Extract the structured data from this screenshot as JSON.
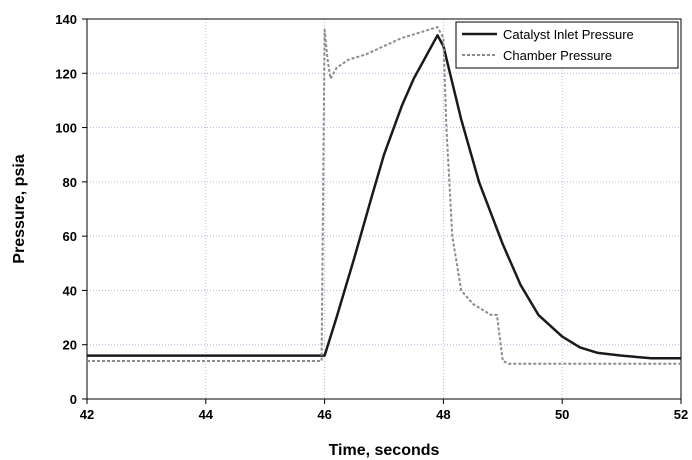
{
  "chart_data": {
    "type": "line",
    "title": "",
    "xlabel": "Time, seconds",
    "ylabel": "Pressure, psia",
    "xlim": [
      42,
      52
    ],
    "ylim": [
      0,
      140
    ],
    "xticks": [
      "42",
      "44",
      "46",
      "48",
      "50",
      "52"
    ],
    "yticks": [
      "0",
      "20",
      "40",
      "60",
      "80",
      "100",
      "120",
      "140"
    ],
    "grid": true,
    "legend_position": "top-right",
    "series": [
      {
        "name": "Catalyst Inlet Pressure",
        "color": "#1a1a1a",
        "style": "solid",
        "x": [
          42,
          43,
          44,
          45,
          45.9,
          46.0,
          46.2,
          46.5,
          46.8,
          47.0,
          47.3,
          47.5,
          47.7,
          47.9,
          48.0,
          48.3,
          48.6,
          49.0,
          49.3,
          49.6,
          50.0,
          50.3,
          50.6,
          51.0,
          51.5,
          52.0
        ],
        "y": [
          16,
          16,
          16,
          16,
          16,
          16,
          30,
          52,
          75,
          90,
          108,
          118,
          126,
          134,
          130,
          103,
          80,
          57,
          42,
          31,
          23,
          19,
          17,
          16,
          15,
          15
        ]
      },
      {
        "name": "Chamber Pressure",
        "color": "#8c8c8c",
        "style": "dashed",
        "x": [
          42,
          43,
          44,
          45,
          45.95,
          46.0,
          46.05,
          46.1,
          46.2,
          46.4,
          46.7,
          47.0,
          47.3,
          47.6,
          47.9,
          48.0,
          48.05,
          48.15,
          48.3,
          48.5,
          48.8,
          48.9,
          49.0,
          49.1,
          49.5,
          50.0,
          50.5,
          51.0,
          51.5,
          52.0
        ],
        "y": [
          14,
          14,
          14,
          14,
          14,
          136,
          125,
          118,
          122,
          125,
          127,
          130,
          133,
          135,
          137,
          133,
          100,
          60,
          40,
          35,
          31,
          31,
          14,
          13,
          13,
          13,
          13,
          13,
          13,
          13
        ]
      }
    ]
  }
}
